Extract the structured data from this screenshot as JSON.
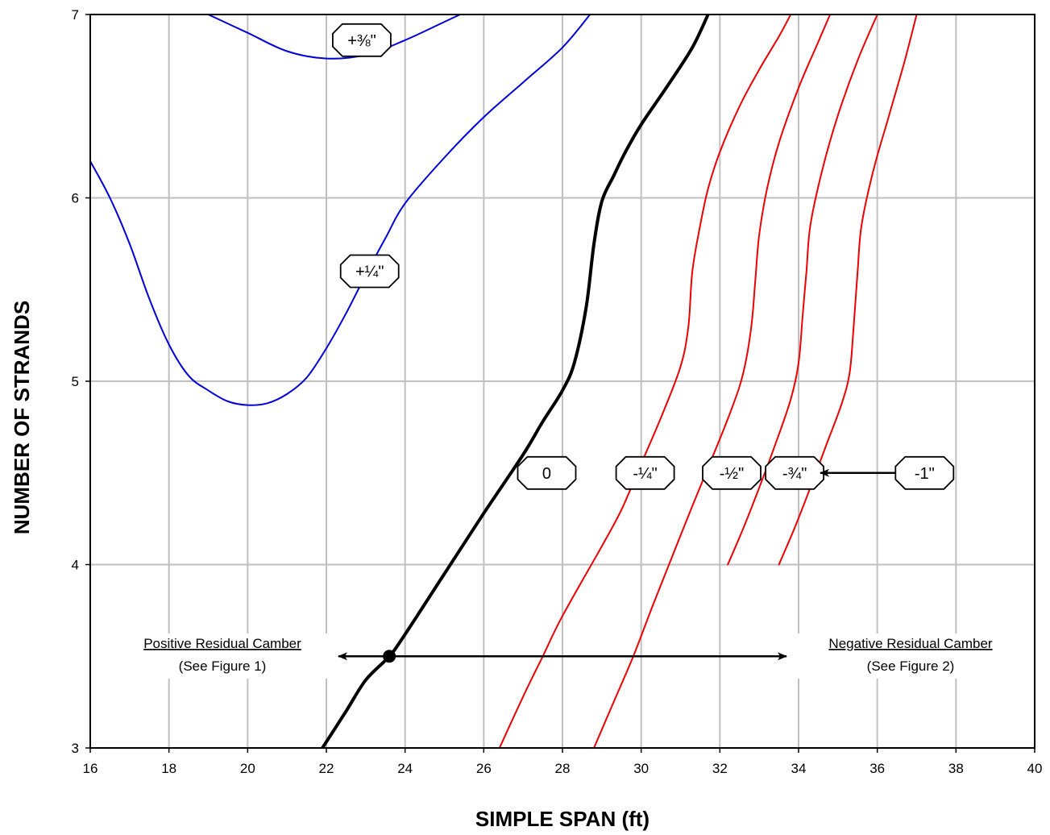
{
  "chart_data": {
    "type": "line",
    "xlabel": "SIMPLE SPAN (ft)",
    "ylabel": "NUMBER OF STRANDS",
    "xlim": [
      16,
      40
    ],
    "ylim": [
      3,
      7
    ],
    "x_ticks": [
      16,
      18,
      20,
      22,
      24,
      26,
      28,
      30,
      32,
      34,
      36,
      38,
      40
    ],
    "y_ticks": [
      3,
      4,
      5,
      6,
      7
    ],
    "grid": true,
    "colors": {
      "zero": "#000000",
      "positive": "#0000dd",
      "negative": "#ee0000",
      "grid": "#c0c0c0"
    },
    "series": [
      {
        "name": "+⅜\"",
        "group": "positive",
        "points": [
          [
            19,
            7
          ],
          [
            20,
            6.9
          ],
          [
            21,
            6.8
          ],
          [
            22,
            6.76
          ],
          [
            23,
            6.78
          ],
          [
            24,
            6.86
          ],
          [
            25,
            6.96
          ],
          [
            25.4,
            7
          ]
        ]
      },
      {
        "name": "+¼\"",
        "group": "positive",
        "points": [
          [
            16,
            6.2
          ],
          [
            16.5,
            6.0
          ],
          [
            17,
            5.75
          ],
          [
            17.5,
            5.45
          ],
          [
            18,
            5.2
          ],
          [
            18.5,
            5.03
          ],
          [
            19,
            4.95
          ],
          [
            19.5,
            4.89
          ],
          [
            20,
            4.87
          ],
          [
            20.5,
            4.88
          ],
          [
            21,
            4.93
          ],
          [
            21.5,
            5.02
          ],
          [
            22,
            5.18
          ],
          [
            22.5,
            5.37
          ],
          [
            23,
            5.58
          ],
          [
            23.5,
            5.78
          ],
          [
            24,
            5.97
          ],
          [
            25,
            6.22
          ],
          [
            26,
            6.44
          ],
          [
            27,
            6.63
          ],
          [
            28,
            6.82
          ],
          [
            28.7,
            7
          ]
        ]
      },
      {
        "name": "0",
        "group": "zero",
        "points": [
          [
            21.9,
            3
          ],
          [
            22.5,
            3.2
          ],
          [
            23,
            3.37
          ],
          [
            23.6,
            3.5
          ],
          [
            24,
            3.62
          ],
          [
            25,
            3.95
          ],
          [
            26,
            4.28
          ],
          [
            27,
            4.6
          ],
          [
            27.5,
            4.78
          ],
          [
            28,
            4.95
          ],
          [
            28.3,
            5.1
          ],
          [
            28.6,
            5.4
          ],
          [
            28.8,
            5.75
          ],
          [
            29,
            5.98
          ],
          [
            29.3,
            6.12
          ],
          [
            29.6,
            6.25
          ],
          [
            30,
            6.4
          ],
          [
            30.7,
            6.62
          ],
          [
            31.3,
            6.82
          ],
          [
            31.7,
            7
          ]
        ]
      },
      {
        "name": "-¼\"",
        "group": "negative",
        "points": [
          [
            26.4,
            3
          ],
          [
            27,
            3.28
          ],
          [
            27.5,
            3.5
          ],
          [
            28,
            3.72
          ],
          [
            29,
            4.1
          ],
          [
            29.5,
            4.3
          ],
          [
            30,
            4.55
          ],
          [
            30.5,
            4.8
          ],
          [
            31,
            5.08
          ],
          [
            31.2,
            5.3
          ],
          [
            31.3,
            5.6
          ],
          [
            31.5,
            5.85
          ],
          [
            31.7,
            6.05
          ],
          [
            32,
            6.25
          ],
          [
            32.5,
            6.5
          ],
          [
            33,
            6.7
          ],
          [
            33.5,
            6.88
          ],
          [
            33.8,
            7
          ]
        ]
      },
      {
        "name": "-½\"",
        "group": "negative",
        "points": [
          [
            28.8,
            3
          ],
          [
            29.3,
            3.25
          ],
          [
            29.8,
            3.5
          ],
          [
            30.3,
            3.78
          ],
          [
            30.8,
            4.05
          ],
          [
            31.3,
            4.32
          ],
          [
            31.8,
            4.58
          ],
          [
            32.3,
            4.85
          ],
          [
            32.6,
            5.05
          ],
          [
            32.8,
            5.3
          ],
          [
            32.9,
            5.55
          ],
          [
            33,
            5.8
          ],
          [
            33.2,
            6.05
          ],
          [
            33.5,
            6.3
          ],
          [
            34,
            6.6
          ],
          [
            34.5,
            6.85
          ],
          [
            34.8,
            7
          ]
        ]
      },
      {
        "name": "-¾\"",
        "group": "negative",
        "points": [
          [
            32.2,
            4
          ],
          [
            32.6,
            4.2
          ],
          [
            33,
            4.42
          ],
          [
            33.4,
            4.65
          ],
          [
            33.8,
            4.9
          ],
          [
            34,
            5.1
          ],
          [
            34.1,
            5.35
          ],
          [
            34.2,
            5.6
          ],
          [
            34.3,
            5.85
          ],
          [
            34.6,
            6.15
          ],
          [
            35,
            6.45
          ],
          [
            35.5,
            6.75
          ],
          [
            36,
            7
          ]
        ]
      },
      {
        "name": "-1\"",
        "group": "negative",
        "points": [
          [
            33.5,
            4
          ],
          [
            33.9,
            4.2
          ],
          [
            34.3,
            4.42
          ],
          [
            34.7,
            4.65
          ],
          [
            35.1,
            4.88
          ],
          [
            35.3,
            5.05
          ],
          [
            35.4,
            5.3
          ],
          [
            35.5,
            5.6
          ],
          [
            35.6,
            5.85
          ],
          [
            35.9,
            6.15
          ],
          [
            36.3,
            6.45
          ],
          [
            36.7,
            6.75
          ],
          [
            37,
            7
          ]
        ]
      }
    ],
    "tags": [
      {
        "text": "+⅜\"",
        "x": 22.9,
        "y": 6.86
      },
      {
        "text": "+¼\"",
        "x": 23.1,
        "y": 5.6
      },
      {
        "text": "0",
        "x": 27.6,
        "y": 4.5
      },
      {
        "text": "-¼\"",
        "x": 30.1,
        "y": 4.5
      },
      {
        "text": "-½\"",
        "x": 32.3,
        "y": 4.5
      },
      {
        "text": "-¾\"",
        "x": 33.9,
        "y": 4.5
      },
      {
        "text": "-1\"",
        "x": 37.2,
        "y": 4.5
      }
    ],
    "point_marker": {
      "x": 23.6,
      "y": 3.5
    },
    "annotations": {
      "positive_title": "Positive Residual Camber",
      "positive_ref": "(See Figure 1)",
      "negative_title": "Negative Residual Camber",
      "negative_ref": "(See Figure 2)"
    }
  }
}
